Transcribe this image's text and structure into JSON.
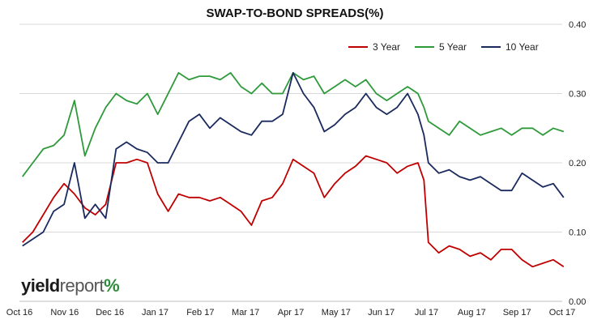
{
  "chart_data": {
    "type": "line",
    "title": "SWAP-TO-BOND SPREADS(%)",
    "ylim": [
      0,
      0.4
    ],
    "yticks": [
      "0.00",
      "0.10",
      "0.20",
      "0.30",
      "0.40"
    ],
    "x_tick_labels": [
      "Oct 16",
      "Nov 16",
      "Dec 16",
      "Jan 17",
      "Feb 17",
      "Mar 17",
      "Apr 17",
      "May 17",
      "Jun 17",
      "Jul 17",
      "Aug 17",
      "Sep 17",
      "Oct 17"
    ],
    "grid": true,
    "legend_position": "top-right",
    "series": [
      {
        "name": "3 Year",
        "color": "#c00000",
        "x": [
          "2016-10-03",
          "2016-10-10",
          "2016-10-17",
          "2016-10-24",
          "2016-10-31",
          "2016-11-07",
          "2016-11-14",
          "2016-11-21",
          "2016-11-28",
          "2016-12-05",
          "2016-12-12",
          "2016-12-19",
          "2016-12-26",
          "2017-01-02",
          "2017-01-09",
          "2017-01-16",
          "2017-01-23",
          "2017-01-30",
          "2017-02-06",
          "2017-02-13",
          "2017-02-20",
          "2017-02-27",
          "2017-03-06",
          "2017-03-13",
          "2017-03-20",
          "2017-03-27",
          "2017-04-03",
          "2017-04-10",
          "2017-04-17",
          "2017-04-24",
          "2017-05-01",
          "2017-05-08",
          "2017-05-15",
          "2017-05-22",
          "2017-05-29",
          "2017-06-05",
          "2017-06-12",
          "2017-06-19",
          "2017-06-26",
          "2017-06-30",
          "2017-07-03",
          "2017-07-10",
          "2017-07-17",
          "2017-07-24",
          "2017-07-31",
          "2017-08-07",
          "2017-08-14",
          "2017-08-21",
          "2017-08-28",
          "2017-09-04",
          "2017-09-11",
          "2017-09-18",
          "2017-09-25",
          "2017-10-02"
        ],
        "values": [
          0.085,
          0.1,
          0.125,
          0.15,
          0.17,
          0.155,
          0.135,
          0.125,
          0.14,
          0.2,
          0.2,
          0.205,
          0.2,
          0.155,
          0.13,
          0.155,
          0.15,
          0.15,
          0.145,
          0.15,
          0.14,
          0.13,
          0.11,
          0.145,
          0.15,
          0.17,
          0.205,
          0.195,
          0.185,
          0.15,
          0.17,
          0.185,
          0.195,
          0.21,
          0.205,
          0.2,
          0.185,
          0.195,
          0.2,
          0.175,
          0.085,
          0.07,
          0.08,
          0.075,
          0.065,
          0.07,
          0.06,
          0.075,
          0.075,
          0.06,
          0.05,
          0.055,
          0.06,
          0.05
        ]
      },
      {
        "name": "5 Year",
        "color": "#2e9a3a",
        "x": [
          "2016-10-03",
          "2016-10-10",
          "2016-10-17",
          "2016-10-24",
          "2016-10-31",
          "2016-11-07",
          "2016-11-14",
          "2016-11-21",
          "2016-11-28",
          "2016-12-05",
          "2016-12-12",
          "2016-12-19",
          "2016-12-26",
          "2017-01-02",
          "2017-01-09",
          "2017-01-16",
          "2017-01-23",
          "2017-01-30",
          "2017-02-06",
          "2017-02-13",
          "2017-02-20",
          "2017-02-27",
          "2017-03-06",
          "2017-03-13",
          "2017-03-20",
          "2017-03-27",
          "2017-04-03",
          "2017-04-10",
          "2017-04-17",
          "2017-04-24",
          "2017-05-01",
          "2017-05-08",
          "2017-05-15",
          "2017-05-22",
          "2017-05-29",
          "2017-06-05",
          "2017-06-12",
          "2017-06-19",
          "2017-06-26",
          "2017-06-30",
          "2017-07-03",
          "2017-07-10",
          "2017-07-17",
          "2017-07-24",
          "2017-07-31",
          "2017-08-07",
          "2017-08-14",
          "2017-08-21",
          "2017-08-28",
          "2017-09-04",
          "2017-09-11",
          "2017-09-18",
          "2017-09-25",
          "2017-10-02"
        ],
        "values": [
          0.18,
          0.2,
          0.22,
          0.225,
          0.24,
          0.29,
          0.21,
          0.25,
          0.28,
          0.3,
          0.29,
          0.285,
          0.3,
          0.27,
          0.3,
          0.33,
          0.32,
          0.325,
          0.325,
          0.32,
          0.33,
          0.31,
          0.3,
          0.315,
          0.3,
          0.3,
          0.33,
          0.32,
          0.325,
          0.3,
          0.31,
          0.32,
          0.31,
          0.32,
          0.3,
          0.29,
          0.3,
          0.31,
          0.3,
          0.28,
          0.26,
          0.25,
          0.24,
          0.26,
          0.25,
          0.24,
          0.245,
          0.25,
          0.24,
          0.25,
          0.25,
          0.24,
          0.25,
          0.245
        ]
      },
      {
        "name": "10 Year",
        "color": "#1a2a5e",
        "x": [
          "2016-10-03",
          "2016-10-10",
          "2016-10-17",
          "2016-10-24",
          "2016-10-31",
          "2016-11-07",
          "2016-11-14",
          "2016-11-21",
          "2016-11-28",
          "2016-12-05",
          "2016-12-12",
          "2016-12-19",
          "2016-12-26",
          "2017-01-02",
          "2017-01-09",
          "2017-01-16",
          "2017-01-23",
          "2017-01-30",
          "2017-02-06",
          "2017-02-13",
          "2017-02-20",
          "2017-02-27",
          "2017-03-06",
          "2017-03-13",
          "2017-03-20",
          "2017-03-27",
          "2017-04-03",
          "2017-04-10",
          "2017-04-17",
          "2017-04-24",
          "2017-05-01",
          "2017-05-08",
          "2017-05-15",
          "2017-05-22",
          "2017-05-29",
          "2017-06-05",
          "2017-06-12",
          "2017-06-19",
          "2017-06-26",
          "2017-06-30",
          "2017-07-03",
          "2017-07-10",
          "2017-07-17",
          "2017-07-24",
          "2017-07-31",
          "2017-08-07",
          "2017-08-14",
          "2017-08-21",
          "2017-08-28",
          "2017-09-04",
          "2017-09-11",
          "2017-09-18",
          "2017-09-25",
          "2017-10-02"
        ],
        "values": [
          0.08,
          0.09,
          0.1,
          0.13,
          0.14,
          0.2,
          0.12,
          0.14,
          0.12,
          0.22,
          0.23,
          0.22,
          0.215,
          0.2,
          0.2,
          0.23,
          0.26,
          0.27,
          0.25,
          0.265,
          0.255,
          0.245,
          0.24,
          0.26,
          0.26,
          0.27,
          0.33,
          0.3,
          0.28,
          0.245,
          0.255,
          0.27,
          0.28,
          0.3,
          0.28,
          0.27,
          0.28,
          0.3,
          0.27,
          0.24,
          0.2,
          0.185,
          0.19,
          0.18,
          0.175,
          0.18,
          0.17,
          0.16,
          0.16,
          0.185,
          0.175,
          0.165,
          0.17,
          0.15
        ]
      }
    ]
  },
  "logo": {
    "part1": "yield",
    "part2": "report",
    "part3": "%"
  }
}
